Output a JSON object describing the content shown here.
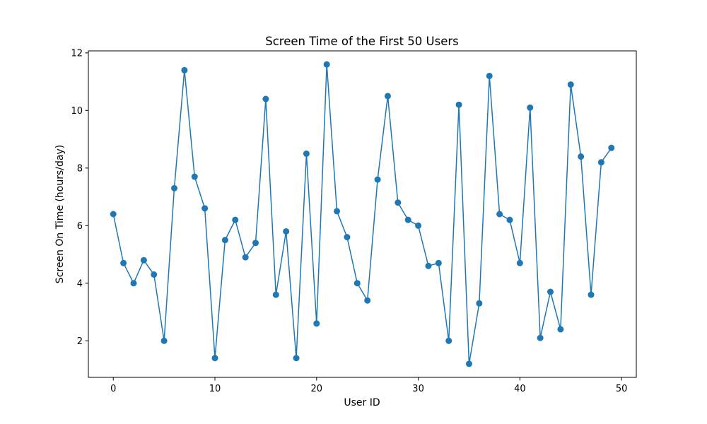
{
  "chart_data": {
    "type": "line",
    "title": "Screen Time of the First 50 Users",
    "xlabel": "User ID",
    "ylabel": "Screen On Time (hours/day)",
    "xlim": [
      -2.45,
      51.45
    ],
    "ylim": [
      0.73,
      12.07
    ],
    "x_ticks": [
      0,
      10,
      20,
      30,
      40,
      50
    ],
    "y_ticks": [
      2,
      4,
      6,
      8,
      10,
      12
    ],
    "grid": false,
    "markers": true,
    "series": [
      {
        "color": "#1f77b4",
        "x": [
          0,
          1,
          2,
          3,
          4,
          5,
          6,
          7,
          8,
          9,
          10,
          11,
          12,
          13,
          14,
          15,
          16,
          17,
          18,
          19,
          20,
          21,
          22,
          23,
          24,
          25,
          26,
          27,
          28,
          29,
          30,
          31,
          32,
          33,
          34,
          35,
          36,
          37,
          38,
          39,
          40,
          41,
          42,
          43,
          44,
          45,
          46,
          47,
          48,
          49
        ],
        "y": [
          6.4,
          4.7,
          4.0,
          4.8,
          4.3,
          2.0,
          7.3,
          11.4,
          7.7,
          6.6,
          1.4,
          5.5,
          6.2,
          4.9,
          5.4,
          10.4,
          3.6,
          5.8,
          1.4,
          8.5,
          2.6,
          11.6,
          6.5,
          5.6,
          4.0,
          3.4,
          7.6,
          10.5,
          6.8,
          6.2,
          6.0,
          4.6,
          4.7,
          2.0,
          10.2,
          1.2,
          3.3,
          11.2,
          6.4,
          6.2,
          4.7,
          10.1,
          2.1,
          3.7,
          2.4,
          10.9,
          8.4,
          3.6,
          8.2,
          8.7
        ]
      }
    ]
  }
}
